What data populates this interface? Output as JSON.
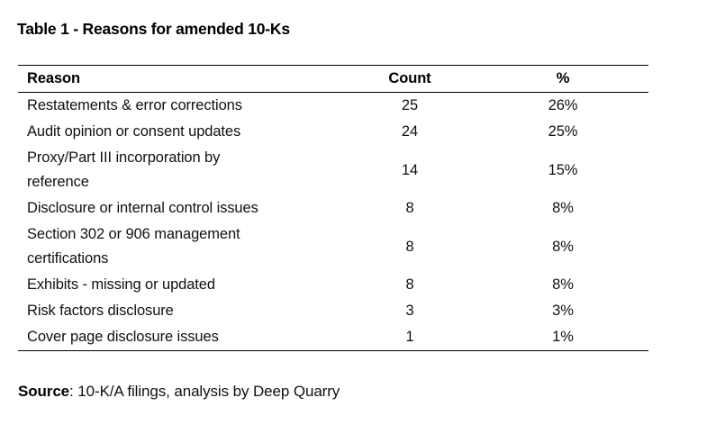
{
  "page": {
    "background_color": "#ffffff",
    "text_color": "#111111",
    "rule_color": "#000000"
  },
  "title": "Table 1 - Reasons for amended 10-Ks",
  "table": {
    "columns": [
      "Reason",
      "Count",
      "%"
    ],
    "rows": [
      {
        "reason": "Restatements & error corrections",
        "count": "25",
        "pct": "26%"
      },
      {
        "reason": "Audit opinion or consent updates",
        "count": "24",
        "pct": "25%"
      },
      {
        "reason": "Proxy/Part III incorporation by\nreference",
        "count": "14",
        "pct": "15%"
      },
      {
        "reason": "Disclosure or internal control issues",
        "count": "8",
        "pct": "8%"
      },
      {
        "reason": "Section 302 or 906 management\ncertifications",
        "count": "8",
        "pct": "8%"
      },
      {
        "reason": "Exhibits - missing or updated",
        "count": "8",
        "pct": "8%"
      },
      {
        "reason": "Risk factors disclosure",
        "count": "3",
        "pct": "3%"
      },
      {
        "reason": "Cover page disclosure issues",
        "count": "1",
        "pct": "1%"
      }
    ]
  },
  "source": {
    "label": "Source",
    "text": ": 10-K/A filings, analysis by Deep Quarry"
  }
}
